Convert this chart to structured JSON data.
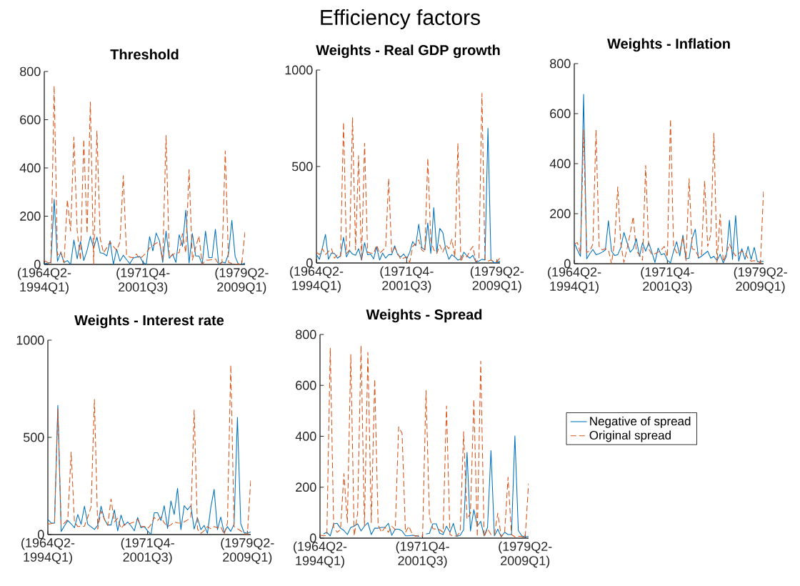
{
  "chart_data": [
    {
      "type": "other",
      "title": "Efficiency factors"
    },
    {
      "type": "line",
      "title": "Threshold",
      "categories": [
        "(1964Q2-1994Q1)",
        null,
        null,
        null,
        null,
        null,
        null,
        null,
        null,
        null,
        null,
        null,
        null,
        null,
        null,
        null,
        null,
        null,
        null,
        null,
        null,
        null,
        null,
        null,
        null,
        null,
        null,
        null,
        null,
        null,
        "(1971Q4-2001Q3)",
        null,
        null,
        null,
        null,
        null,
        null,
        null,
        null,
        null,
        null,
        null,
        null,
        null,
        null,
        null,
        null,
        null,
        null,
        null,
        null,
        null,
        null,
        null,
        null,
        null,
        null,
        null,
        null,
        null,
        "(1979Q2-2009Q1)",
        null
      ],
      "ylim": [
        0,
        800
      ],
      "yticks": [
        0,
        200,
        400,
        600,
        800
      ],
      "series": [
        {
          "color": "#0072bd",
          "line_style": "solid",
          "values": [
            3,
            5,
            8,
            270,
            13,
            50,
            8,
            16,
            0,
            101,
            23,
            95,
            16,
            58,
            116,
            68,
            113,
            48,
            45,
            35,
            98,
            0,
            63,
            13,
            38,
            20,
            3,
            26,
            30,
            33,
            8,
            1,
            115,
            56,
            130,
            98,
            8,
            138,
            25,
            43,
            8,
            123,
            75,
            225,
            6,
            128,
            35,
            35,
            0,
            138,
            28,
            28,
            146,
            0,
            10,
            6,
            45,
            183,
            33,
            0,
            0,
            6
          ]
        },
        {
          "color": "#d95319",
          "line_style": "dashed",
          "values": [
            16,
            8,
            0,
            740,
            38,
            53,
            6,
            268,
            138,
            528,
            138,
            18,
            518,
            128,
            673,
            0,
            553,
            108,
            48,
            70,
            93,
            75,
            58,
            93,
            368,
            38,
            30,
            28,
            43,
            23,
            35,
            48,
            68,
            78,
            88,
            93,
            18,
            535,
            28,
            40,
            48,
            48,
            128,
            48,
            393,
            18,
            70,
            118,
            0,
            18,
            18,
            20,
            23,
            0,
            8,
            470,
            8,
            4,
            0,
            3,
            0,
            135
          ]
        }
      ]
    },
    {
      "type": "line",
      "title": "Weights - Real GDP growth",
      "categories": [
        "(1964Q2-1994Q1)",
        null,
        null,
        null,
        null,
        null,
        null,
        null,
        null,
        null,
        null,
        null,
        null,
        null,
        null,
        null,
        null,
        null,
        null,
        null,
        null,
        null,
        null,
        null,
        null,
        null,
        null,
        null,
        null,
        null,
        "(1971Q4-2001Q3)",
        null,
        null,
        null,
        null,
        null,
        null,
        null,
        null,
        null,
        null,
        null,
        null,
        null,
        null,
        null,
        null,
        null,
        null,
        null,
        null,
        null,
        null,
        null,
        null,
        null,
        null,
        null,
        null,
        null,
        "(1979Q2-2009Q1)",
        null
      ],
      "ylim": [
        0,
        1000
      ],
      "yticks": [
        0,
        500,
        1000
      ],
      "series": [
        {
          "color": "#0072bd",
          "line_style": "solid",
          "values": [
            43,
            19,
            80,
            148,
            19,
            52,
            49,
            25,
            37,
            133,
            31,
            64,
            46,
            40,
            74,
            15,
            105,
            43,
            46,
            21,
            83,
            15,
            52,
            25,
            43,
            43,
            89,
            43,
            31,
            47,
            21,
            56,
            111,
            89,
            201,
            80,
            68,
            207,
            49,
            287,
            56,
            179,
            158,
            68,
            19,
            43,
            31,
            15,
            21,
            56,
            37,
            25,
            40,
            4,
            10,
            19,
            16,
            698,
            16,
            2,
            2,
            9
          ]
        },
        {
          "color": "#d95319",
          "line_style": "dashed",
          "values": [
            56,
            43,
            74,
            43,
            60,
            74,
            25,
            43,
            33,
            729,
            49,
            68,
            753,
            68,
            556,
            12,
            620,
            56,
            52,
            49,
            93,
            49,
            65,
            80,
            438,
            56,
            80,
            50,
            19,
            25,
            31,
            4,
            86,
            99,
            120,
            68,
            56,
            543,
            117,
            68,
            49,
            93,
            56,
            93,
            74,
            123,
            31,
            620,
            6,
            43,
            31,
            64,
            86,
            6,
            19,
            879,
            19,
            9,
            16,
            6,
            6,
            27
          ]
        }
      ]
    },
    {
      "type": "line",
      "title": "Weights - Inflation",
      "categories": [
        "(1964Q2-1994Q1)",
        null,
        null,
        null,
        null,
        null,
        null,
        null,
        null,
        null,
        null,
        null,
        null,
        null,
        null,
        null,
        null,
        null,
        null,
        null,
        null,
        null,
        null,
        null,
        null,
        null,
        null,
        null,
        null,
        null,
        "(1971Q4-2001Q3)",
        null,
        null,
        null,
        null,
        null,
        null,
        null,
        null,
        null,
        null,
        null,
        null,
        null,
        null,
        null,
        null,
        null,
        null,
        null,
        null,
        null,
        null,
        null,
        null,
        null,
        null,
        null,
        null,
        null,
        "(1979Q2-2009Q1)",
        null
      ],
      "ylim": [
        0,
        800
      ],
      "yticks": [
        0,
        200,
        400,
        600,
        800
      ],
      "series": [
        {
          "color": "#0072bd",
          "line_style": "solid",
          "values": [
            84,
            55,
            29,
            678,
            19,
            40,
            57,
            36,
            40,
            46,
            55,
            172,
            50,
            33,
            36,
            65,
            125,
            85,
            46,
            60,
            100,
            29,
            84,
            50,
            84,
            46,
            5,
            62,
            36,
            41,
            14,
            3,
            50,
            88,
            31,
            114,
            19,
            22,
            101,
            138,
            22,
            30,
            40,
            50,
            22,
            29,
            12,
            38,
            3,
            29,
            174,
            17,
            193,
            10,
            60,
            17,
            69,
            17,
            65,
            8,
            8,
            10
          ]
        },
        {
          "color": "#d95319",
          "line_style": "dashed",
          "values": [
            79,
            84,
            41,
            535,
            46,
            50,
            79,
            535,
            69,
            55,
            60,
            55,
            0,
            88,
            307,
            79,
            5,
            60,
            120,
            188,
            50,
            36,
            14,
            393,
            60,
            36,
            40,
            46,
            55,
            69,
            27,
            578,
            69,
            43,
            46,
            108,
            12,
            340,
            60,
            55,
            27,
            36,
            331,
            69,
            117,
            521,
            5,
            198,
            8,
            41,
            79,
            50,
            31,
            41,
            50,
            46,
            20,
            10,
            12,
            10,
            3,
            298
          ]
        }
      ]
    },
    {
      "type": "line",
      "title": "Weights - Interest rate",
      "categories": [
        "(1964Q2-1994Q1)",
        null,
        null,
        null,
        null,
        null,
        null,
        null,
        null,
        null,
        null,
        null,
        null,
        null,
        null,
        null,
        null,
        null,
        null,
        null,
        null,
        null,
        null,
        null,
        null,
        null,
        null,
        null,
        null,
        null,
        "(1971Q4-2001Q3)",
        null,
        null,
        null,
        null,
        null,
        null,
        null,
        null,
        null,
        null,
        null,
        null,
        null,
        null,
        null,
        null,
        null,
        null,
        null,
        null,
        null,
        null,
        null,
        null,
        null,
        null,
        null,
        null,
        null,
        "(1979Q2-2009Q1)",
        null
      ],
      "ylim": [
        0,
        1000
      ],
      "yticks": [
        0,
        500,
        1000
      ],
      "series": [
        {
          "color": "#0072bd",
          "line_style": "solid",
          "values": [
            78,
            59,
            59,
            664,
            16,
            45,
            72,
            55,
            35,
            103,
            53,
            146,
            53,
            40,
            26,
            47,
            146,
            78,
            49,
            49,
            127,
            19,
            100,
            47,
            65,
            45,
            19,
            88,
            35,
            41,
            19,
            0,
            112,
            112,
            72,
            148,
            31,
            173,
            103,
            238,
            25,
            149,
            127,
            149,
            28,
            86,
            25,
            47,
            6,
            140,
            232,
            25,
            90,
            10,
            41,
            16,
            53,
            603,
            56,
            10,
            6,
            14
          ]
        },
        {
          "color": "#d95319",
          "line_style": "dashed",
          "values": [
            53,
            56,
            59,
            646,
            47,
            59,
            78,
            424,
            65,
            41,
            42,
            43,
            90,
            142,
            695,
            28,
            121,
            80,
            47,
            183,
            65,
            84,
            31,
            53,
            53,
            59,
            65,
            78,
            41,
            41,
            31,
            50,
            88,
            72,
            90,
            60,
            41,
            50,
            65,
            60,
            59,
            65,
            75,
            88,
            640,
            28,
            6,
            20,
            41,
            30,
            41,
            35,
            41,
            0,
            59,
            871,
            41,
            30,
            19,
            6,
            0,
            282
          ]
        }
      ]
    },
    {
      "type": "line",
      "title": "Weights - Spread",
      "categories": [
        "(1964Q2-1994Q1)",
        null,
        null,
        null,
        null,
        null,
        null,
        null,
        null,
        null,
        null,
        null,
        null,
        null,
        null,
        null,
        null,
        null,
        null,
        null,
        null,
        null,
        null,
        null,
        null,
        null,
        null,
        null,
        null,
        null,
        "(1971Q4-2001Q3)",
        null,
        null,
        null,
        null,
        null,
        null,
        null,
        null,
        null,
        null,
        null,
        null,
        null,
        null,
        null,
        null,
        null,
        null,
        null,
        null,
        null,
        null,
        null,
        null,
        null,
        null,
        null,
        null,
        null,
        "(1979Q2-2009Q1)",
        null
      ],
      "ylim": [
        0,
        800
      ],
      "yticks": [
        0,
        200,
        400,
        600,
        800
      ],
      "legend": "right",
      "series": [
        {
          "name": "Negative of spread",
          "color": "#0072bd",
          "line_style": "solid",
          "values": [
            null,
            16,
            23,
            9,
            56,
            58,
            39,
            30,
            14,
            42,
            47,
            56,
            28,
            47,
            61,
            14,
            39,
            39,
            42,
            42,
            58,
            11,
            35,
            35,
            28,
            9,
            9,
            11,
            9,
            7,
            null,
            16,
            19,
            56,
            56,
            19,
            14,
            47,
            23,
            58,
            7,
            11,
            33,
            337,
            28,
            112,
            47,
            66,
            9,
            42,
            344,
            9,
            35,
            5,
            23,
            14,
            14,
            401,
            30,
            9,
            5,
            7
          ]
        },
        {
          "name": "Original spread",
          "color": "#d95319",
          "line_style": "dashed",
          "values": [
            12,
            9,
            10,
            746,
            42,
            23,
            33,
            253,
            61,
            721,
            9,
            98,
            756,
            47,
            730,
            61,
            624,
            51,
            23,
            42,
            23,
            47,
            33,
            437,
            412,
            23,
            47,
            14,
            7,
            11,
            7,
            580,
            84,
            37,
            35,
            33,
            23,
            519,
            14,
            7,
            9,
            23,
            418,
            75,
            98,
            545,
            5,
            695,
            5,
            37,
            14,
            14,
            98,
            5,
            23,
            239,
            14,
            5,
            7,
            7,
            0,
            215
          ]
        }
      ]
    }
  ]
}
